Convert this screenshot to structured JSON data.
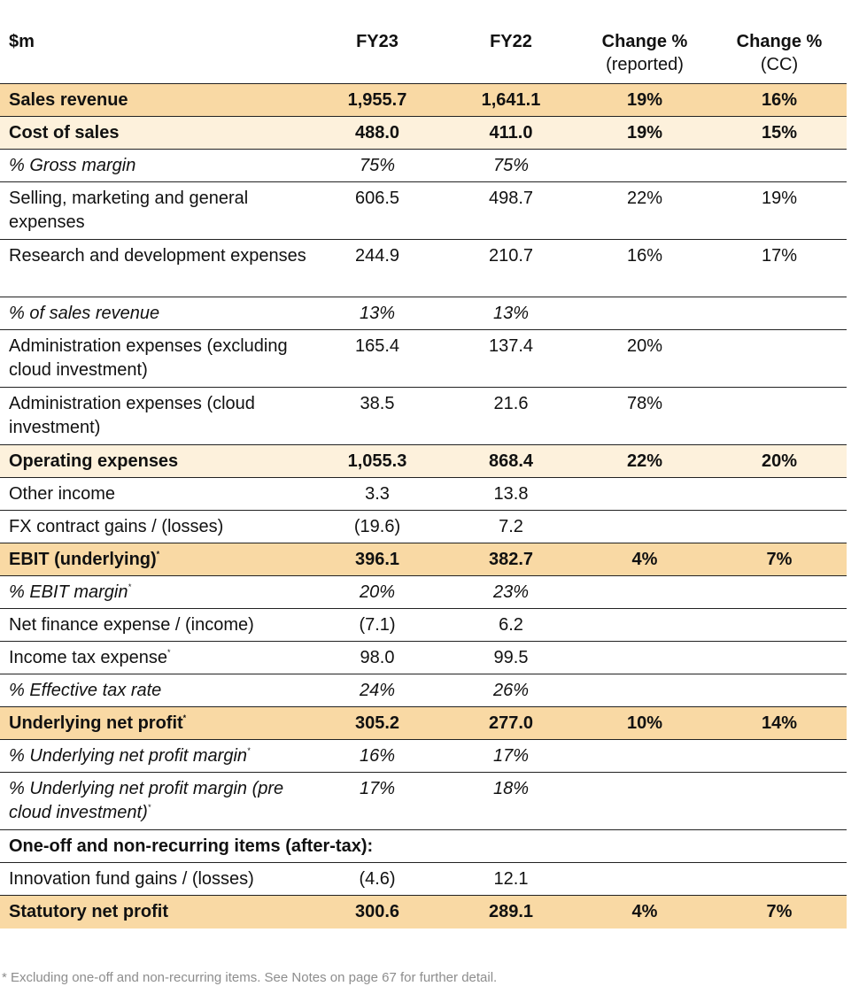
{
  "header": {
    "col0": "$m",
    "col1": "FY23",
    "col2": "FY22",
    "col3": "Change %",
    "col3_sub": "(reported)",
    "col4": "Change %",
    "col4_sub": "(CC)"
  },
  "rows": [
    {
      "label": "Sales revenue",
      "fy23": "1,955.7",
      "fy22": "1,641.1",
      "chg": "19%",
      "cc": "16%"
    },
    {
      "label": "Cost of sales",
      "fy23": "488.0",
      "fy22": "411.0",
      "chg": "19%",
      "cc": "15%"
    },
    {
      "label": "% Gross margin",
      "fy23": "75%",
      "fy22": "75%",
      "chg": "",
      "cc": ""
    },
    {
      "label": "Selling, marketing and general expenses",
      "fy23": "606.5",
      "fy22": "498.7",
      "chg": "22%",
      "cc": "19%"
    },
    {
      "label": "Research and development expenses",
      "fy23": "244.9",
      "fy22": "210.7",
      "chg": "16%",
      "cc": "17%"
    },
    {
      "label": "% of sales revenue",
      "fy23": "13%",
      "fy22": "13%",
      "chg": "",
      "cc": ""
    },
    {
      "label": "Administration expenses (excluding cloud investment)",
      "fy23": "165.4",
      "fy22": "137.4",
      "chg": "20%",
      "cc": ""
    },
    {
      "label": "Administration expenses (cloud investment)",
      "fy23": "38.5",
      "fy22": "21.6",
      "chg": "78%",
      "cc": ""
    },
    {
      "label": "Operating expenses",
      "fy23": "1,055.3",
      "fy22": "868.4",
      "chg": "22%",
      "cc": "20%"
    },
    {
      "label": "Other income",
      "fy23": "3.3",
      "fy22": "13.8",
      "chg": "",
      "cc": ""
    },
    {
      "label": "FX contract gains / (losses)",
      "fy23": "(19.6)",
      "fy22": "7.2",
      "chg": "",
      "cc": ""
    },
    {
      "label": "EBIT (underlying)",
      "fy23": "396.1",
      "fy22": "382.7",
      "chg": "4%",
      "cc": "7%"
    },
    {
      "label": "% EBIT margin",
      "fy23": "20%",
      "fy22": "23%",
      "chg": "",
      "cc": ""
    },
    {
      "label": "Net finance expense / (income)",
      "fy23": "(7.1)",
      "fy22": "6.2",
      "chg": "",
      "cc": ""
    },
    {
      "label": "Income tax expense",
      "fy23": "98.0",
      "fy22": "99.5",
      "chg": "",
      "cc": ""
    },
    {
      "label": "% Effective tax rate",
      "fy23": "24%",
      "fy22": "26%",
      "chg": "",
      "cc": ""
    },
    {
      "label": "Underlying net profit",
      "fy23": "305.2",
      "fy22": "277.0",
      "chg": "10%",
      "cc": "14%"
    },
    {
      "label": "% Underlying net profit margin",
      "fy23": "16%",
      "fy22": "17%",
      "chg": "",
      "cc": ""
    },
    {
      "label": "% Underlying net profit margin (pre cloud investment)",
      "fy23": "17%",
      "fy22": "18%",
      "chg": "",
      "cc": ""
    },
    {
      "label": "One-off and non-recurring items (after-tax):",
      "fy23": "",
      "fy22": "",
      "chg": "",
      "cc": ""
    },
    {
      "label": "Innovation fund gains / (losses)",
      "fy23": "(4.6)",
      "fy22": "12.1",
      "chg": "",
      "cc": ""
    },
    {
      "label": "Statutory net profit",
      "fy23": "300.6",
      "fy22": "289.1",
      "chg": "4%",
      "cc": "7%"
    }
  ],
  "footnote_marker": "*",
  "footnote": "* Excluding one-off and non-recurring items. See Notes on page 67 for further detail.",
  "colors": {
    "highlight_dark": "#f9d9a4",
    "highlight_light": "#fdf1dc",
    "rule": "#222222",
    "footnote": "#8d8d8d"
  }
}
